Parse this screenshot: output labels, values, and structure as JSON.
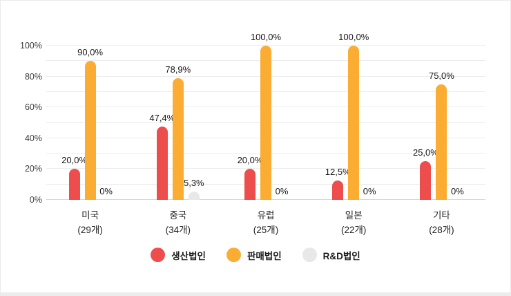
{
  "chart_data": {
    "type": "bar",
    "title": "",
    "xlabel": "",
    "ylabel": "",
    "categories": [
      "미국",
      "중국",
      "유럽",
      "일본",
      "기타"
    ],
    "category_counts": [
      "(29개)",
      "(34개)",
      "(25개)",
      "(22개)",
      "(28개)"
    ],
    "series": [
      {
        "name": "생산법인",
        "color": "#EE4D4D",
        "values": [
          20.0,
          47.4,
          20.0,
          12.5,
          25.0
        ],
        "labels": [
          "20,0%",
          "47,4%",
          "20,0%",
          "12,5%",
          "25,0%"
        ]
      },
      {
        "name": "판매법인",
        "color": "#FBAD33",
        "values": [
          90.0,
          78.9,
          100.0,
          100.0,
          75.0
        ],
        "labels": [
          "90,0%",
          "78,9%",
          "100,0%",
          "100,0%",
          "75,0%"
        ]
      },
      {
        "name": "R&D법인",
        "color": "#E8E8E8",
        "values": [
          0,
          5.3,
          0,
          0,
          0
        ],
        "labels": [
          "0%",
          "5,3%",
          "0%",
          "0%",
          "0%"
        ]
      }
    ],
    "y_axis": {
      "ticks": [
        "0%",
        "20%",
        "40%",
        "60%",
        "80%",
        "100%"
      ],
      "tick_values": [
        0,
        20,
        40,
        60,
        80,
        100
      ],
      "ylim": [
        0,
        100
      ],
      "grid_step": 10,
      "grid": true
    },
    "legend_position": "bottom"
  },
  "colors": {
    "production": "#EE4D4D",
    "sales": "#FBAD33",
    "rnd": "#E8E8E8",
    "gridline": "#ececec",
    "baseline": "#d8d8d8",
    "text": "#161616"
  }
}
